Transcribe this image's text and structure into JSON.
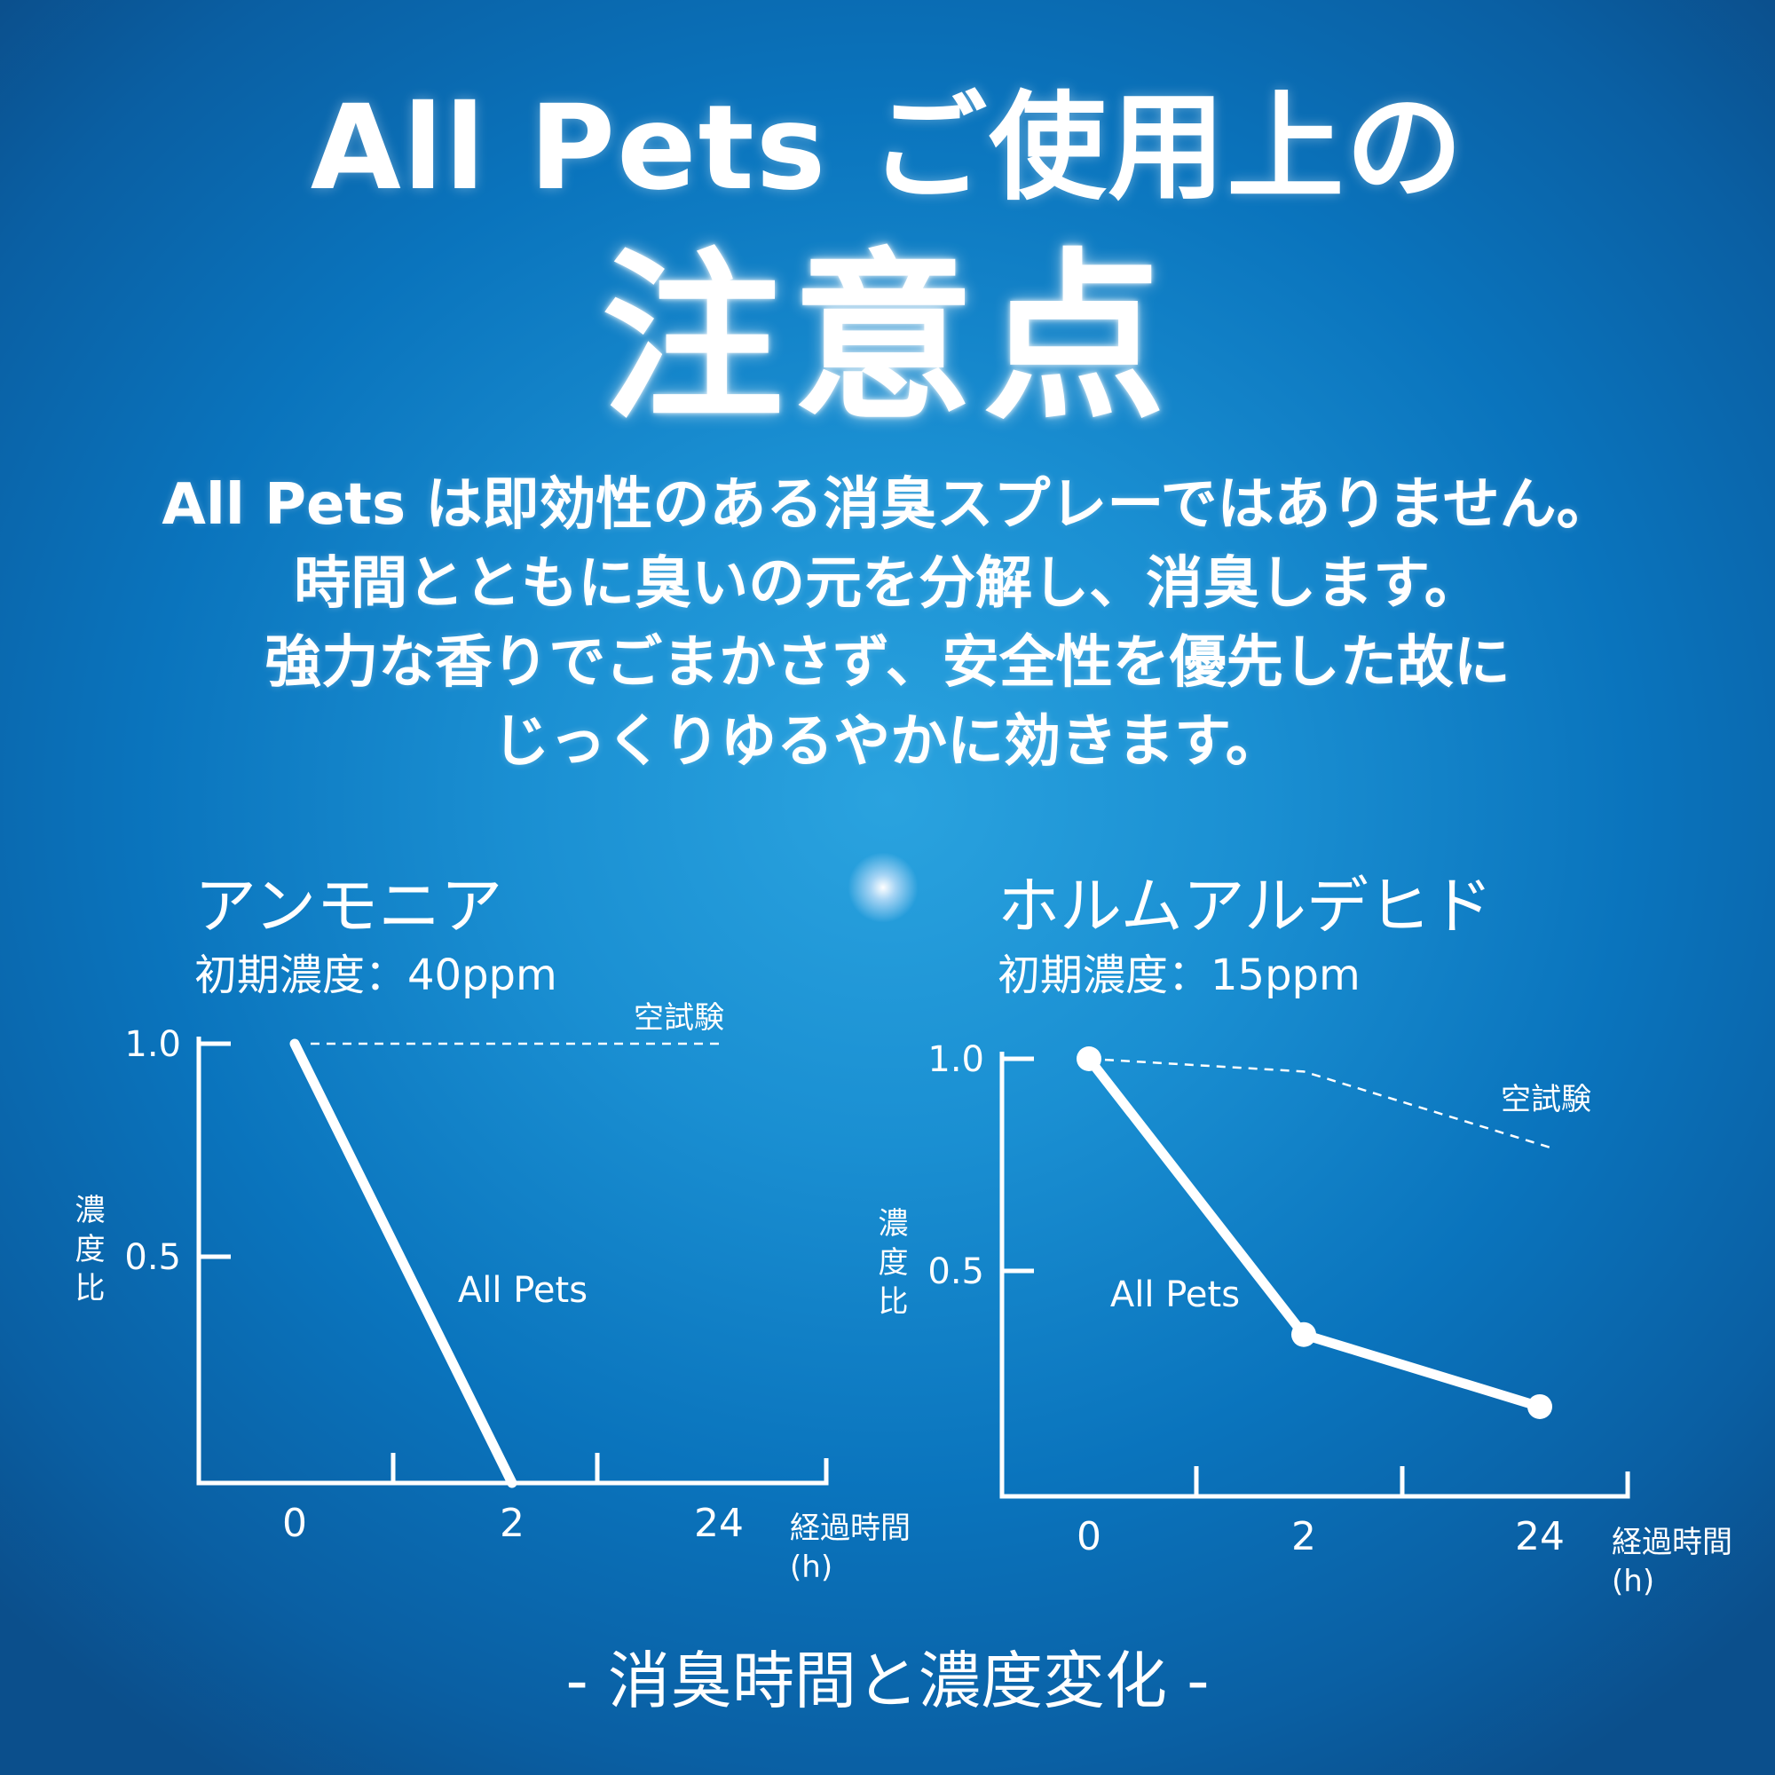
{
  "header": {
    "title_line1": "All Pets ご使用上の",
    "title_line2": "注意点"
  },
  "description": [
    "All Pets は即効性のある消臭スプレーではありません。",
    "時間とともに臭いの元を分解し、消臭します。",
    "強力な香りでごまかさず、安全性を優先した故に",
    "じっくりゆるやかに効きます。"
  ],
  "footer": "- 消臭時間と濃度変化 -",
  "colors": {
    "background_center": "#2aa3df",
    "background_edge": "#0b4f8c",
    "foreground": "#ffffff"
  },
  "chart_data": [
    {
      "type": "line",
      "title": "アンモニア",
      "subtitle": "初期濃度：40ppm",
      "ylabel": "濃度比",
      "xlabel": "経過時間 (h)",
      "categories": [
        "0",
        "2",
        "24"
      ],
      "yticks": [
        "1.0",
        "0.5"
      ],
      "ylim": [
        0,
        1.0
      ],
      "series": [
        {
          "name": "All Pets",
          "values": [
            1.0,
            0.0,
            null
          ]
        },
        {
          "name": "空試験",
          "values": [
            1.0,
            1.0,
            1.0
          ],
          "style": "dashed"
        }
      ]
    },
    {
      "type": "line",
      "title": "ホルムアルデヒド",
      "subtitle": "初期濃度：15ppm",
      "ylabel": "濃度比",
      "xlabel": "経過時間 (h)",
      "categories": [
        "0",
        "2",
        "24"
      ],
      "yticks": [
        "1.0",
        "0.5"
      ],
      "ylim": [
        0,
        1.0
      ],
      "series": [
        {
          "name": "All Pets",
          "values": [
            1.0,
            0.35,
            0.18
          ],
          "markers": true
        },
        {
          "name": "空試験",
          "values": [
            1.0,
            0.97,
            0.79
          ],
          "style": "dashed"
        }
      ]
    }
  ]
}
